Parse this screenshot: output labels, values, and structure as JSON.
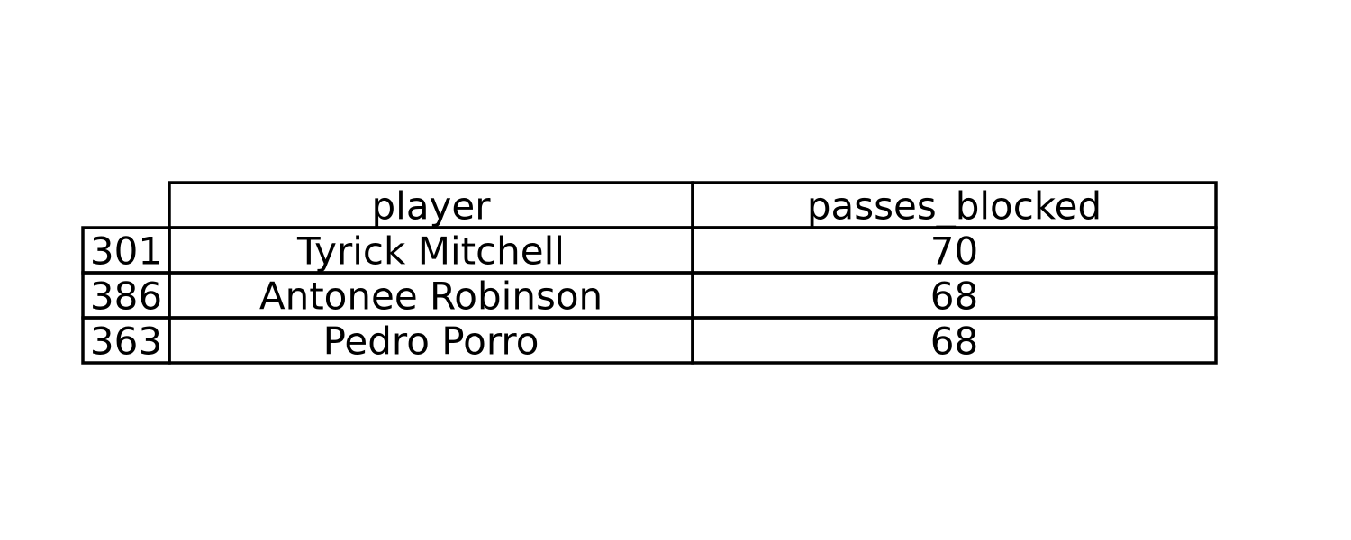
{
  "chart_data": {
    "type": "table",
    "columns": [
      "player",
      "passes_blocked"
    ],
    "rows": [
      {
        "index": "301",
        "player": "Tyrick Mitchell",
        "passes_blocked": "70"
      },
      {
        "index": "386",
        "player": "Antonee Robinson",
        "passes_blocked": "68"
      },
      {
        "index": "363",
        "player": "Pedro Porro",
        "passes_blocked": "68"
      }
    ]
  }
}
